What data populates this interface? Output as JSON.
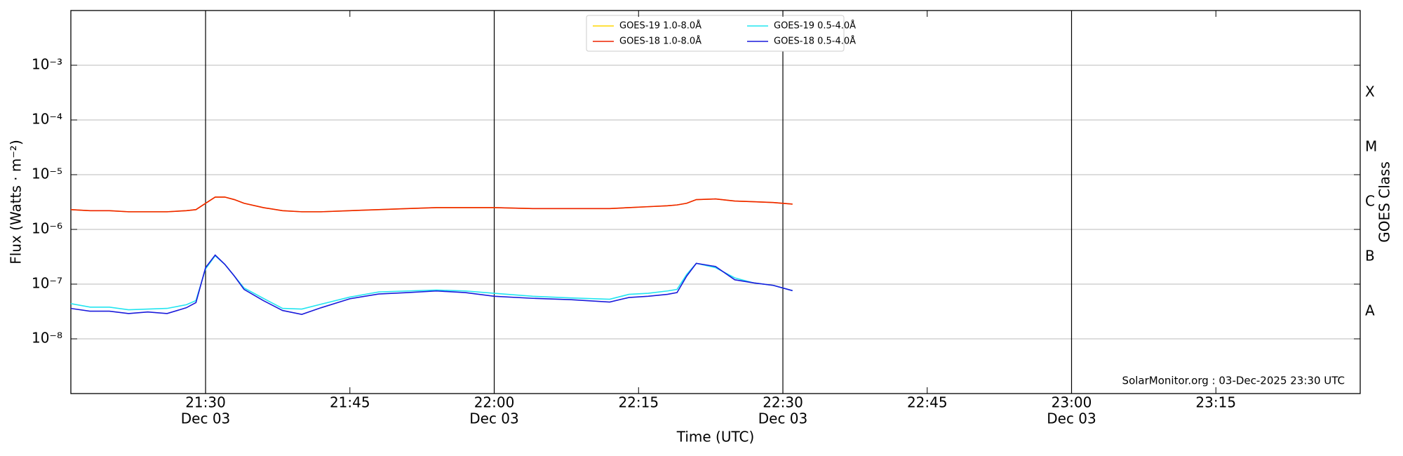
{
  "chart_data": {
    "type": "line",
    "x_label": "Time (UTC)",
    "y_label": "Flux (Watts · m⁻²)",
    "y2_label": "GOES Class",
    "annotation": "SolarMonitor.org : 03-Dec-2025 23:30 UTC",
    "yscale": "log",
    "grid": true,
    "legend": "upper center",
    "xlim": [
      "21:16",
      "23:30"
    ],
    "xticks": [
      "21:30",
      "21:45",
      "22:00",
      "22:15",
      "22:30",
      "22:45",
      "23:00",
      "23:15"
    ],
    "xtick_sublabels": [
      "Dec 03",
      null,
      "Dec 03",
      null,
      "Dec 03",
      null,
      "Dec 03",
      null
    ],
    "vlines": [
      "21:30",
      "22:00",
      "22:30",
      "23:00"
    ],
    "ylim": [
      1e-09,
      0.01
    ],
    "yticks": [
      {
        "value": 1e-08,
        "label": "10⁻⁸"
      },
      {
        "value": 1e-07,
        "label": "10⁻⁷"
      },
      {
        "value": 1e-06,
        "label": "10⁻⁶"
      },
      {
        "value": 1e-05,
        "label": "10⁻⁵"
      },
      {
        "value": 0.0001,
        "label": "10⁻⁴"
      },
      {
        "value": 0.001,
        "label": "10⁻³"
      }
    ],
    "y2lim": [
      1e-09,
      0.01
    ],
    "y2ticks": [
      {
        "value": 3.16e-08,
        "label": "A"
      },
      {
        "value": 3.16e-07,
        "label": "B"
      },
      {
        "value": 3.16e-06,
        "label": "C"
      },
      {
        "value": 3.16e-05,
        "label": "M"
      },
      {
        "value": 0.000316,
        "label": "X"
      }
    ],
    "x": [
      "21:16",
      "21:18",
      "21:20",
      "21:22",
      "21:24",
      "21:26",
      "21:28",
      "21:29",
      "21:30",
      "21:31",
      "21:32",
      "21:33",
      "21:34",
      "21:36",
      "21:38",
      "21:40",
      "21:42",
      "21:45",
      "21:48",
      "21:51",
      "21:54",
      "21:57",
      "22:00",
      "22:04",
      "22:08",
      "22:12",
      "22:14",
      "22:16",
      "22:18",
      "22:19",
      "22:20",
      "22:21",
      "22:23",
      "22:25",
      "22:27",
      "22:29",
      "22:31"
    ],
    "series": [
      {
        "name": "GOES-19 1.0-8.0Å",
        "color": "#ffd700",
        "values": [
          2.3e-06,
          2.2e-06,
          2.2e-06,
          2.1e-06,
          2.1e-06,
          2.1e-06,
          2.2e-06,
          2.3e-06,
          3e-06,
          3.9e-06,
          3.9e-06,
          3.5e-06,
          3e-06,
          2.5e-06,
          2.2e-06,
          2.1e-06,
          2.1e-06,
          2.2e-06,
          2.3e-06,
          2.4e-06,
          2.5e-06,
          2.5e-06,
          2.5e-06,
          2.4e-06,
          2.4e-06,
          2.4e-06,
          2.5e-06,
          2.6e-06,
          2.7e-06,
          2.8e-06,
          3e-06,
          3.5e-06,
          3.6e-06,
          3.3e-06,
          3.2e-06,
          3.1e-06,
          2.9e-06
        ]
      },
      {
        "name": "GOES-18 1.0-8.0Å",
        "color": "#ee2200",
        "values": [
          2.3e-06,
          2.2e-06,
          2.2e-06,
          2.1e-06,
          2.1e-06,
          2.1e-06,
          2.2e-06,
          2.3e-06,
          3e-06,
          3.9e-06,
          3.9e-06,
          3.5e-06,
          3e-06,
          2.5e-06,
          2.2e-06,
          2.1e-06,
          2.1e-06,
          2.2e-06,
          2.3e-06,
          2.4e-06,
          2.5e-06,
          2.5e-06,
          2.5e-06,
          2.4e-06,
          2.4e-06,
          2.4e-06,
          2.5e-06,
          2.6e-06,
          2.7e-06,
          2.8e-06,
          3e-06,
          3.5e-06,
          3.6e-06,
          3.3e-06,
          3.2e-06,
          3.1e-06,
          2.9e-06
        ]
      },
      {
        "name": "GOES-19 0.5-4.0Å",
        "color": "#22e5f0",
        "values": [
          4.4e-08,
          3.8e-08,
          3.8e-08,
          3.4e-08,
          3.5e-08,
          3.6e-08,
          4.2e-08,
          5e-08,
          1.9e-07,
          3.3e-07,
          2.3e-07,
          1.4e-07,
          8.5e-08,
          5.5e-08,
          3.6e-08,
          3.5e-08,
          4.3e-08,
          5.8e-08,
          7.2e-08,
          7.5e-08,
          7.8e-08,
          7.5e-08,
          6.8e-08,
          6e-08,
          5.6e-08,
          5.3e-08,
          6.5e-08,
          6.8e-08,
          7.5e-08,
          8e-08,
          1.5e-07,
          2.4e-07,
          2e-07,
          1.3e-07,
          1.05e-07,
          9.5e-08,
          7.6e-08
        ]
      },
      {
        "name": "GOES-18 0.5-4.0Å",
        "color": "#1a1adb",
        "values": [
          3.6e-08,
          3.2e-08,
          3.2e-08,
          2.9e-08,
          3.1e-08,
          2.9e-08,
          3.7e-08,
          4.6e-08,
          2e-07,
          3.4e-07,
          2.3e-07,
          1.4e-07,
          8e-08,
          5e-08,
          3.3e-08,
          2.8e-08,
          3.7e-08,
          5.4e-08,
          6.6e-08,
          7e-08,
          7.5e-08,
          7e-08,
          6e-08,
          5.5e-08,
          5.2e-08,
          4.7e-08,
          5.7e-08,
          6e-08,
          6.5e-08,
          7e-08,
          1.4e-07,
          2.4e-07,
          2.1e-07,
          1.2e-07,
          1.05e-07,
          9.5e-08,
          7.6e-08
        ]
      }
    ]
  }
}
